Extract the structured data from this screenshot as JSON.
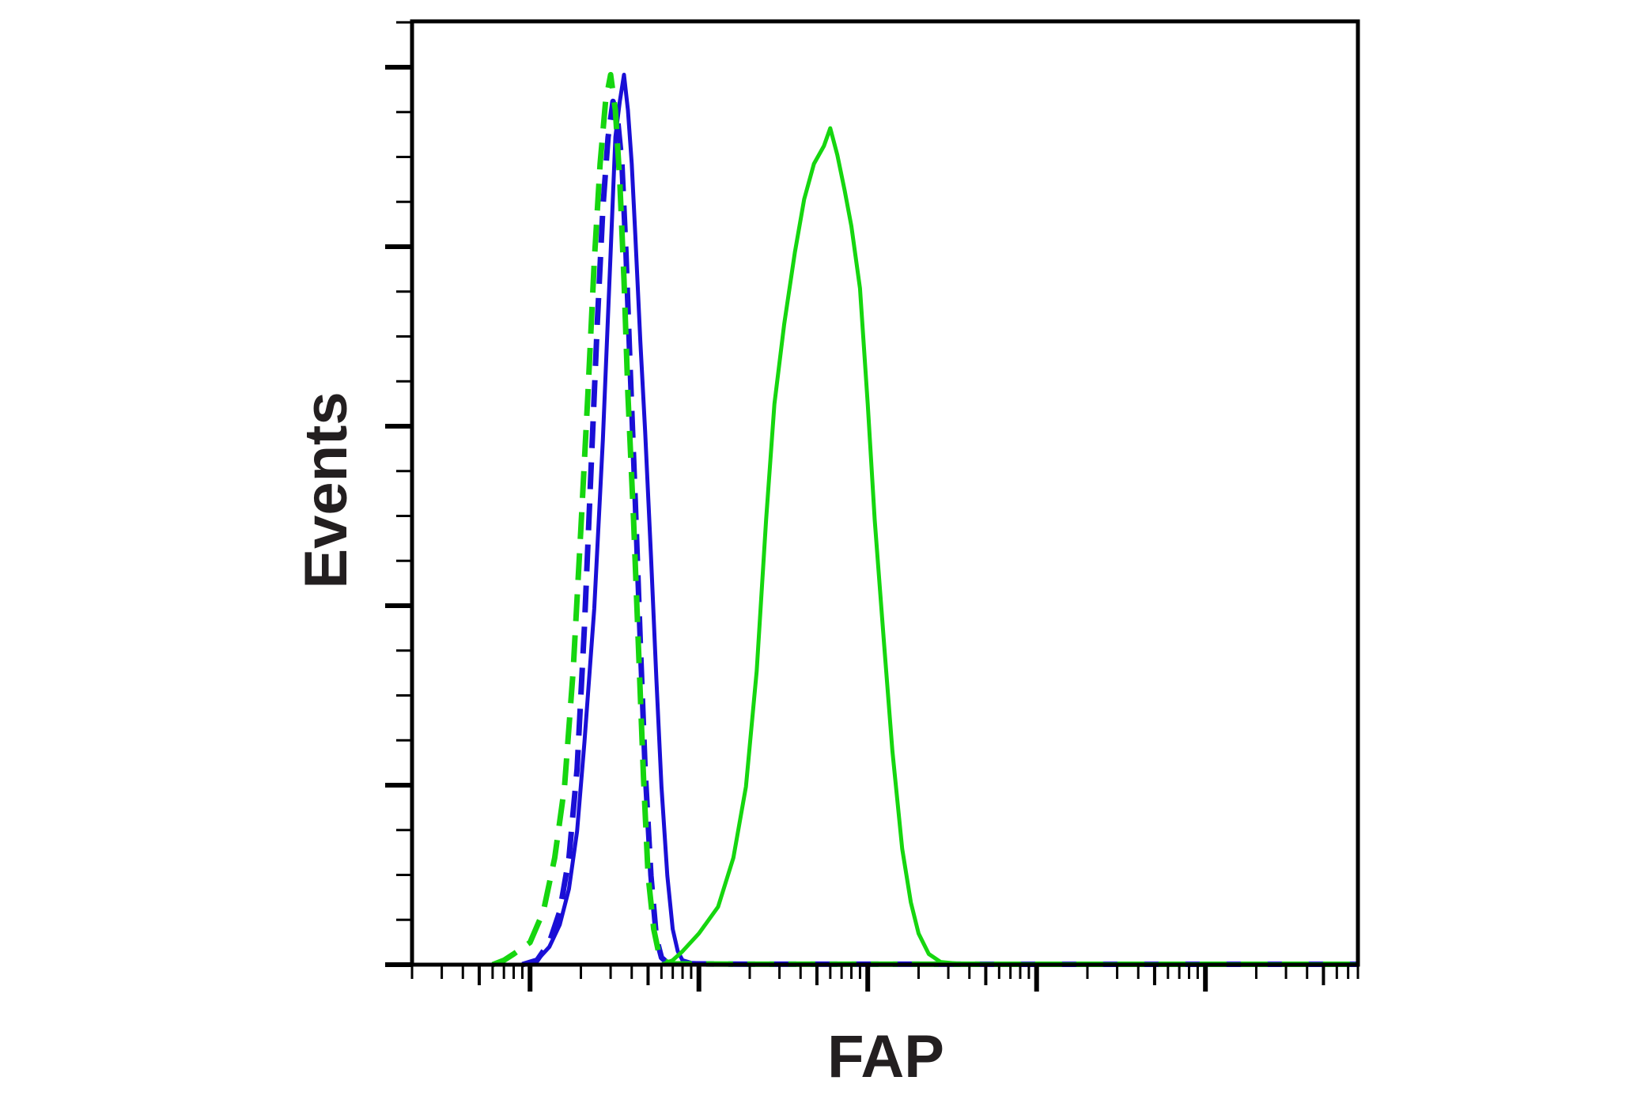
{
  "chart_data": {
    "type": "line",
    "xlabel": "FAP",
    "ylabel": "Events",
    "x_scale": "log",
    "xlim": [
      0.02,
      8000
    ],
    "ylim": [
      0,
      1.06
    ],
    "x_major_ticks": [
      0.1,
      1,
      10,
      100,
      1000
    ],
    "y_major_tick_count": 5,
    "y_minor_per_major": 3,
    "legend": "none",
    "grid": false,
    "series": [
      {
        "color": "#1a0fd6",
        "style": "solid",
        "points": [
          [
            0.09,
            0
          ],
          [
            0.11,
            0.005
          ],
          [
            0.13,
            0.02
          ],
          [
            0.15,
            0.045
          ],
          [
            0.17,
            0.085
          ],
          [
            0.19,
            0.15
          ],
          [
            0.21,
            0.25
          ],
          [
            0.24,
            0.4
          ],
          [
            0.27,
            0.59
          ],
          [
            0.3,
            0.8
          ],
          [
            0.32,
            0.93
          ],
          [
            0.34,
            0.97
          ],
          [
            0.36,
            1.0
          ],
          [
            0.38,
            0.96
          ],
          [
            0.4,
            0.9
          ],
          [
            0.42,
            0.82
          ],
          [
            0.45,
            0.7
          ],
          [
            0.48,
            0.6
          ],
          [
            0.52,
            0.46
          ],
          [
            0.56,
            0.32
          ],
          [
            0.6,
            0.2
          ],
          [
            0.65,
            0.1
          ],
          [
            0.7,
            0.04
          ],
          [
            0.75,
            0.015
          ],
          [
            0.8,
            0.005
          ],
          [
            0.9,
            0.002
          ],
          [
            1.2,
            0.001
          ],
          [
            3,
            0.001
          ],
          [
            100,
            0.001
          ],
          [
            300,
            0.0005
          ],
          [
            1000,
            0.0004
          ],
          [
            8000,
            0.0004
          ]
        ]
      },
      {
        "color": "#1a0fd6",
        "style": "dashed",
        "points": [
          [
            0.09,
            0
          ],
          [
            0.11,
            0.005
          ],
          [
            0.13,
            0.025
          ],
          [
            0.15,
            0.06
          ],
          [
            0.17,
            0.12
          ],
          [
            0.19,
            0.22
          ],
          [
            0.21,
            0.38
          ],
          [
            0.23,
            0.56
          ],
          [
            0.25,
            0.72
          ],
          [
            0.27,
            0.85
          ],
          [
            0.29,
            0.93
          ],
          [
            0.31,
            0.97
          ],
          [
            0.33,
            0.95
          ],
          [
            0.35,
            0.9
          ],
          [
            0.37,
            0.8
          ],
          [
            0.39,
            0.68
          ],
          [
            0.42,
            0.52
          ],
          [
            0.45,
            0.36
          ],
          [
            0.48,
            0.22
          ],
          [
            0.52,
            0.1
          ],
          [
            0.56,
            0.03
          ],
          [
            0.6,
            0.008
          ],
          [
            0.65,
            0.002
          ],
          [
            0.8,
            0.001
          ],
          [
            2,
            0.0005
          ],
          [
            8000,
            0.0004
          ]
        ]
      },
      {
        "color": "#16d60f",
        "style": "dashed",
        "points": [
          [
            0.06,
            0
          ],
          [
            0.07,
            0.005
          ],
          [
            0.08,
            0.012
          ],
          [
            0.1,
            0.025
          ],
          [
            0.12,
            0.06
          ],
          [
            0.14,
            0.12
          ],
          [
            0.16,
            0.2
          ],
          [
            0.18,
            0.33
          ],
          [
            0.2,
            0.49
          ],
          [
            0.22,
            0.64
          ],
          [
            0.24,
            0.79
          ],
          [
            0.26,
            0.9
          ],
          [
            0.28,
            0.97
          ],
          [
            0.3,
            1.0
          ],
          [
            0.32,
            0.96
          ],
          [
            0.34,
            0.88
          ],
          [
            0.36,
            0.77
          ],
          [
            0.38,
            0.64
          ],
          [
            0.41,
            0.5
          ],
          [
            0.44,
            0.35
          ],
          [
            0.47,
            0.21
          ],
          [
            0.5,
            0.1
          ],
          [
            0.54,
            0.04
          ],
          [
            0.58,
            0.012
          ],
          [
            0.62,
            0.004
          ],
          [
            0.7,
            0.001
          ],
          [
            2,
            0.0005
          ],
          [
            8000,
            0.0004
          ]
        ]
      },
      {
        "color": "#16d60f",
        "style": "solid",
        "points": [
          [
            0.6,
            0
          ],
          [
            0.7,
            0.005
          ],
          [
            0.8,
            0.015
          ],
          [
            1.0,
            0.035
          ],
          [
            1.3,
            0.065
          ],
          [
            1.6,
            0.12
          ],
          [
            1.9,
            0.2
          ],
          [
            2.2,
            0.33
          ],
          [
            2.5,
            0.5
          ],
          [
            2.8,
            0.63
          ],
          [
            3.2,
            0.72
          ],
          [
            3.7,
            0.8
          ],
          [
            4.2,
            0.86
          ],
          [
            4.8,
            0.9
          ],
          [
            5.5,
            0.92
          ],
          [
            6.0,
            0.94
          ],
          [
            6.6,
            0.91
          ],
          [
            7.3,
            0.87
          ],
          [
            8.0,
            0.83
          ],
          [
            9.0,
            0.76
          ],
          [
            10,
            0.63
          ],
          [
            11,
            0.5
          ],
          [
            12.5,
            0.36
          ],
          [
            14,
            0.24
          ],
          [
            16,
            0.13
          ],
          [
            18,
            0.07
          ],
          [
            20,
            0.035
          ],
          [
            23,
            0.012
          ],
          [
            27,
            0.003
          ],
          [
            35,
            0.001
          ],
          [
            100,
            0.0005
          ],
          [
            8000,
            0.0004
          ]
        ]
      }
    ]
  }
}
